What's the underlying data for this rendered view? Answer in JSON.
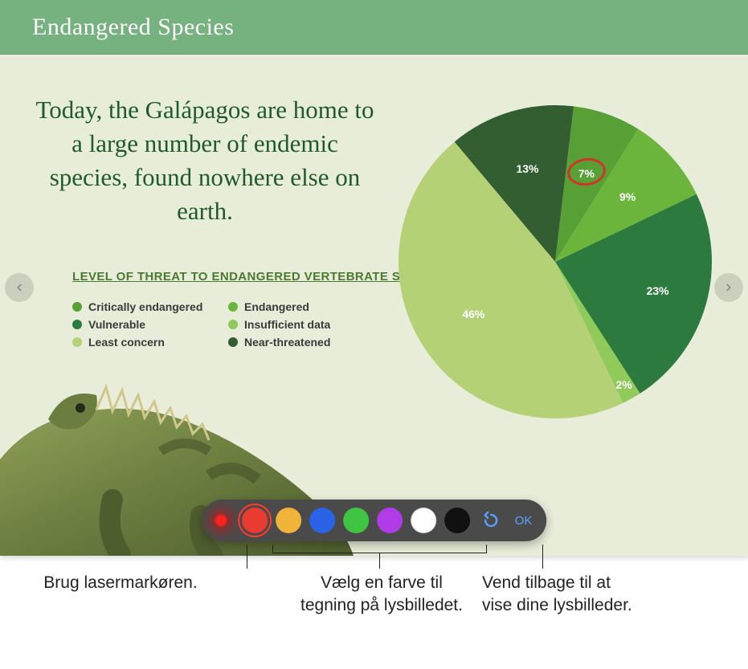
{
  "slide": {
    "background": "#e8edd9",
    "header": {
      "title": "Endangered Species",
      "bg": "#76b280",
      "color": "#ffffff"
    },
    "body_text": "Today, the Galápagos are home to a large number of endemic species, found nowhere else on earth.",
    "body_color": "#1f5a2e",
    "section_title": "LEVEL OF THREAT TO ENDANGERED VERTEBRATE SPECIES",
    "section_color": "#4a7a2f",
    "legend": [
      {
        "label": "Critically endangered",
        "color": "#56a035"
      },
      {
        "label": "Endangered",
        "color": "#6bb53c"
      },
      {
        "label": "Vulnerable",
        "color": "#2d7a3e"
      },
      {
        "label": "Insufficient data",
        "color": "#8fca5a"
      },
      {
        "label": "Least concern",
        "color": "#b4d176"
      },
      {
        "label": "Near-threatened",
        "color": "#335e31"
      }
    ],
    "pie": {
      "type": "pie",
      "slices": [
        {
          "value": 13,
          "label": "13%",
          "color": "#335e31",
          "r": 0.62
        },
        {
          "value": 7,
          "label": "7%",
          "color": "#56a035",
          "r": 0.6
        },
        {
          "value": 9,
          "label": "9%",
          "color": "#6bb53c",
          "r": 0.62
        },
        {
          "value": 23,
          "label": "23%",
          "color": "#2d7a3e",
          "r": 0.68
        },
        {
          "value": 2,
          "label": "2%",
          "color": "#8fca5a",
          "r": 0.9
        },
        {
          "value": 46,
          "label": "46%",
          "color": "#b4d176",
          "r": 0.62
        }
      ],
      "start_angle_deg": -40,
      "label_color": "#ffffff",
      "label_fontsize": 14,
      "annotate_index": 1,
      "annotate_color": "#d2332b"
    }
  },
  "toolbar": {
    "colors": [
      {
        "name": "red",
        "hex": "#e93b2f",
        "selected": true
      },
      {
        "name": "yellow",
        "hex": "#f1b43b",
        "selected": false
      },
      {
        "name": "blue",
        "hex": "#2a63e6",
        "selected": false
      },
      {
        "name": "green",
        "hex": "#3fc443",
        "selected": false
      },
      {
        "name": "purple",
        "hex": "#b23be8",
        "selected": false
      },
      {
        "name": "white",
        "hex": "#ffffff",
        "selected": false
      },
      {
        "name": "black",
        "hex": "#111111",
        "selected": false
      }
    ],
    "undo_color": "#5aa0ff",
    "ok_label": "OK",
    "bg": "#4a4a4a"
  },
  "callouts": {
    "laser": "Brug lasermarkøren.",
    "colors": "Vælg en farve til tegning på lysbilledet.",
    "ok": "Vend tilbage til at vise dine lysbilleder."
  }
}
